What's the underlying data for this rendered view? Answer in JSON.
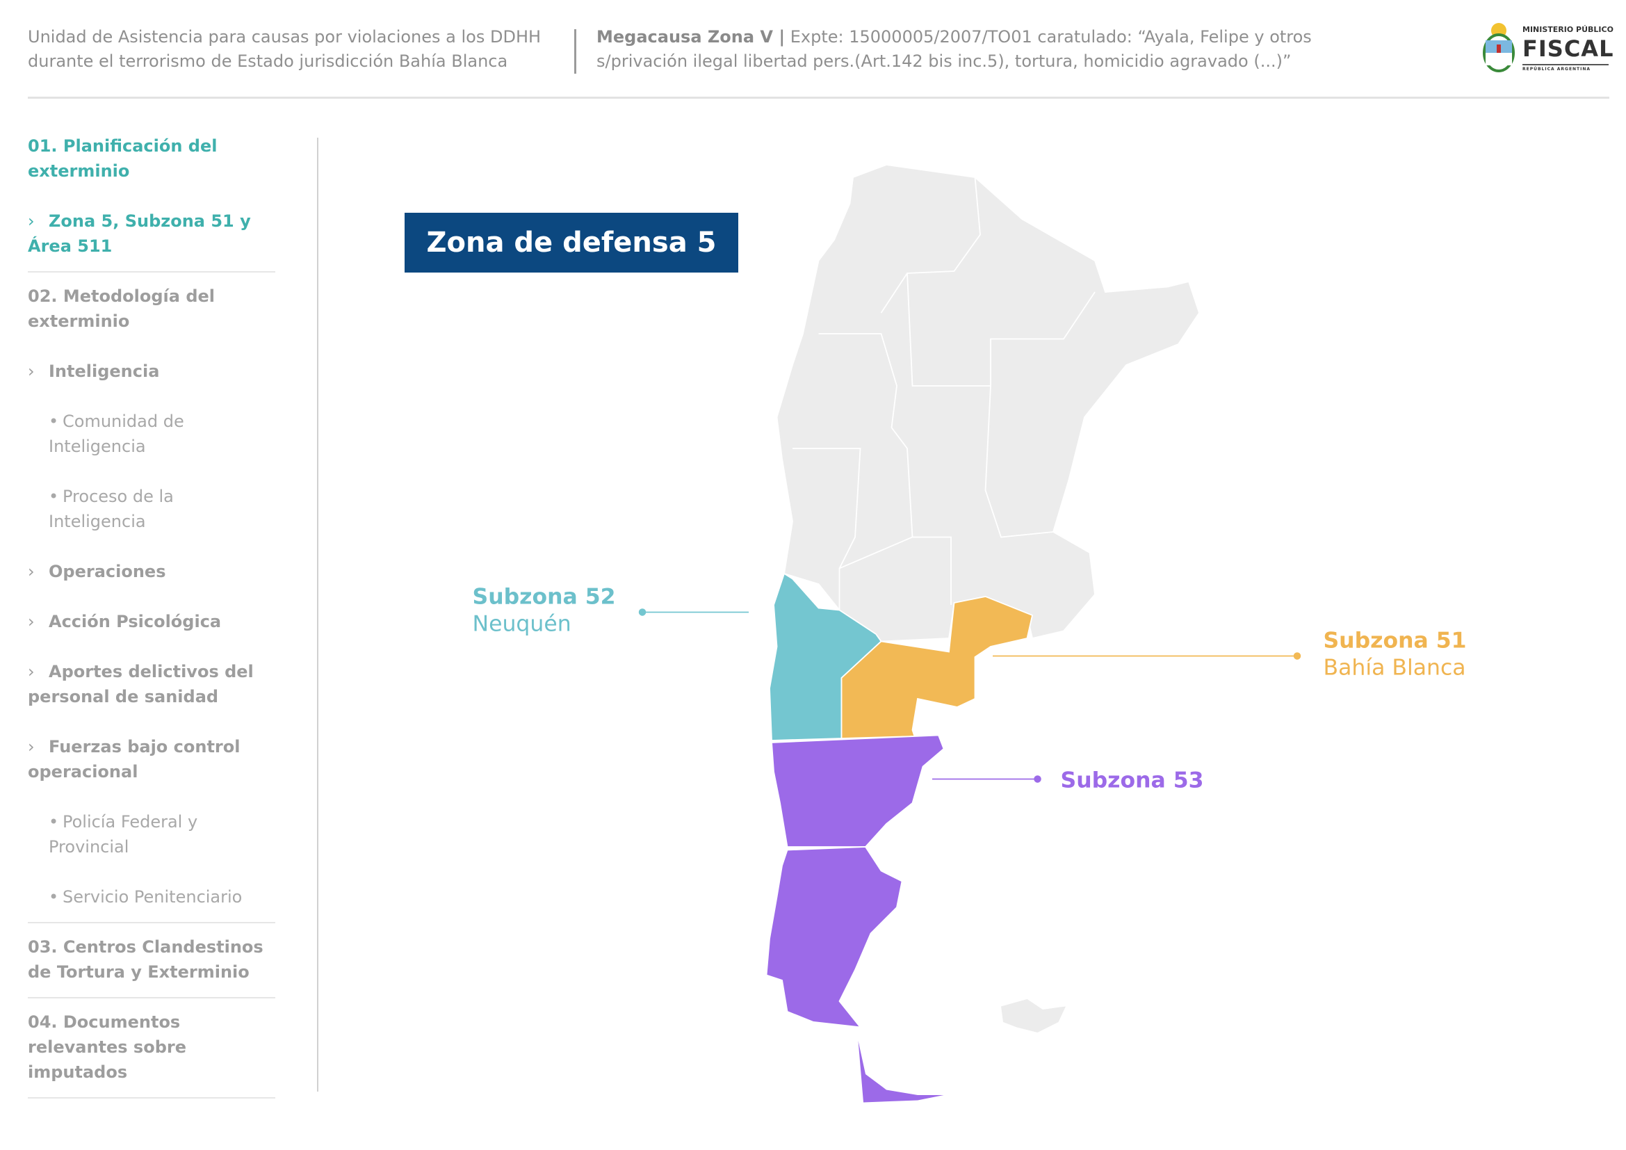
{
  "header": {
    "left_line1": "Unidad de Asistencia para causas por violaciones a los DDHH",
    "left_line2": "durante el terrorismo de Estado jurisdicción Bahía Blanca",
    "right_bold": "Megacausa Zona V |",
    "right_line1": " Expte: 15000005/2007/TO01 caratulado: “Ayala, Felipe y otros",
    "right_line2": "s/privación ilegal libertad pers.(Art.142 bis inc.5), tortura, homicidio agravado (...)”"
  },
  "logo": {
    "line1": "MINISTERIO PÚBLICO",
    "line2": "FISCAL",
    "line3": "REPÚBLICA ARGENTINA"
  },
  "sidebar": {
    "s1": "01. Planificación del exterminio",
    "s1_item": "Zona 5, Subzona 51 y Área 511",
    "s2": "02. Metodología del exterminio",
    "inteligencia": "Inteligencia",
    "comunidad": "Comunidad de Inteligencia",
    "proceso": "Proceso de la Inteligencia",
    "operaciones": "Operaciones",
    "accion": "Acción Psicológica",
    "aportes": "Aportes delictivos del personal de sanidad",
    "fuerzas": "Fuerzas bajo control operacional",
    "policia": "Policía Federal y Provincial",
    "servicio": "Servicio Penitenciario",
    "s3": "03. Centros Clandestinos de Tortura y Exterminio",
    "s4": "04. Documentos relevantes sobre imputados",
    "chevron": "›",
    "bullet": "•"
  },
  "map": {
    "title": "Zona de defensa 5",
    "sz52": {
      "name": "Subzona 52",
      "place": "Neuquén",
      "color": "#74c6d0"
    },
    "sz51": {
      "name": "Subzona 51",
      "place": "Bahía Blanca",
      "color": "#f2b955"
    },
    "sz53": {
      "name": "Subzona 53",
      "color": "#9c6ae8"
    },
    "base_color": "#ececec"
  }
}
